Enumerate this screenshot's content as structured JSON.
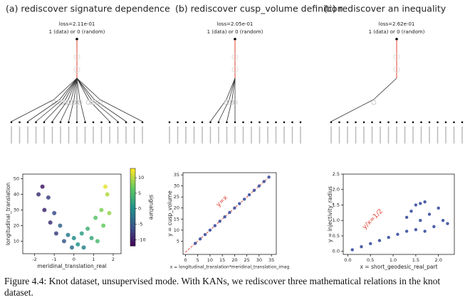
{
  "chart_data": [
    {
      "type": "scatter",
      "title": "(a) rediscover signature dependence",
      "loss": "loss=2.11e-01",
      "output_label": "1 (data) or 0 (random)",
      "x_label": "meridinal_translation_real",
      "y_label": "longitudinal_translation",
      "xlim": [
        -2.6,
        2.4
      ],
      "ylim": [
        2,
        53
      ],
      "xticks": [
        -2,
        -1,
        0,
        1,
        2
      ],
      "yticks": [
        10,
        20,
        30,
        40,
        50
      ],
      "colorbar": {
        "label": "signature",
        "lim": [
          -12,
          13
        ],
        "ticks": [
          10,
          5,
          0,
          -5,
          -10
        ]
      },
      "x": [
        -1.8,
        -1.6,
        -1.5,
        -1.3,
        -1.2,
        -1.0,
        -0.9,
        -0.7,
        -0.5,
        -0.3,
        -0.1,
        0.0,
        0.2,
        0.4,
        0.5,
        0.7,
        0.9,
        1.1,
        1.2,
        1.4,
        1.5,
        1.7,
        1.8,
        1.6
      ],
      "values": [
        40,
        45,
        30,
        38,
        22,
        28,
        15,
        20,
        10,
        14,
        6,
        12,
        8,
        15,
        6,
        18,
        12,
        25,
        10,
        30,
        20,
        40,
        28,
        45
      ],
      "color_values": [
        -8,
        -10,
        -9,
        -7,
        -8,
        -6,
        -7,
        -4,
        -5,
        -2,
        -3,
        0,
        1,
        2,
        -1,
        4,
        3,
        6,
        5,
        8,
        7,
        10,
        9,
        12
      ]
    },
    {
      "type": "scatter",
      "title": "(b) rediscover cusp_volume definition",
      "loss": "loss=2.05e-01",
      "output_label": "1 (data) or 0 (random)",
      "x_label": "x = longitudinal_translation*meridinal_translation_imag",
      "y_label": "y = cusp_volume",
      "annotation": "y=x",
      "color": "#4c5fa8",
      "xlim": [
        -1,
        37
      ],
      "ylim": [
        -1,
        36
      ],
      "xticks": [
        0,
        5,
        10,
        15,
        20,
        25,
        30,
        35
      ],
      "yticks": [
        5,
        10,
        15,
        20,
        25,
        30,
        35
      ],
      "x": [
        4,
        6,
        8,
        10,
        12,
        14,
        16,
        18,
        20,
        22,
        24,
        26,
        28,
        30,
        32,
        34
      ],
      "values": [
        4,
        6,
        8,
        10,
        12,
        14,
        16,
        18,
        20,
        22,
        24,
        26,
        28,
        30,
        32,
        34
      ]
    },
    {
      "type": "scatter",
      "title": "(c) rediscover an inequality",
      "loss": "loss=2.62e-01",
      "output_label": "1 (data) or 0 (random)",
      "x_label": "x = short_geodesic_real_part",
      "y_label": "y = injectivity_radius",
      "annotation": "y/x=1/2",
      "color": "#4c5fa8",
      "xlim": [
        -0.1,
        2.35
      ],
      "ylim": [
        -0.1,
        2.5
      ],
      "xticks": [
        {
          "value": 0,
          "label": "0.0"
        },
        0.5,
        {
          "value": 1,
          "label": "1.0"
        },
        1.5,
        {
          "value": 2,
          "label": "2.0"
        }
      ],
      "yticks": [
        {
          "value": 0,
          "label": "0.0"
        },
        0.5,
        {
          "value": 1,
          "label": "1.0"
        },
        1.5,
        {
          "value": 2,
          "label": "2.0"
        },
        2.5
      ],
      "x": [
        0.1,
        0.3,
        0.5,
        0.7,
        0.9,
        1.1,
        1.3,
        1.3,
        1.4,
        1.5,
        1.5,
        1.6,
        1.7,
        1.7,
        1.8,
        1.9,
        2.0,
        2.1,
        2.2,
        1.6
      ],
      "values": [
        0.05,
        0.15,
        0.25,
        0.35,
        0.45,
        0.55,
        0.65,
        1.1,
        1.3,
        0.7,
        1.5,
        1.0,
        1.6,
        0.65,
        1.2,
        0.8,
        1.4,
        1.0,
        0.9,
        1.55
      ]
    }
  ],
  "caption": "Figure 4.4: Knot dataset, unsupervised mode. With KANs, we rediscover three mathematical relations in the knot dataset."
}
